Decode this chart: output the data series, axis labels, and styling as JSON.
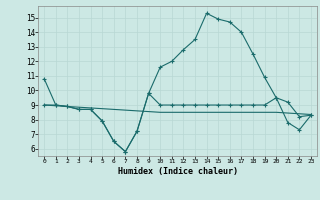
{
  "xlabel": "Humidex (Indice chaleur)",
  "bg_color": "#cce8e4",
  "grid_color": "#b8d8d4",
  "line_color": "#1a6b6b",
  "xlim": [
    -0.5,
    23.5
  ],
  "ylim": [
    5.5,
    15.8
  ],
  "yticks": [
    6,
    7,
    8,
    9,
    10,
    11,
    12,
    13,
    14,
    15
  ],
  "xticks": [
    0,
    1,
    2,
    3,
    4,
    5,
    6,
    7,
    8,
    9,
    10,
    11,
    12,
    13,
    14,
    15,
    16,
    17,
    18,
    19,
    20,
    21,
    22,
    23
  ],
  "line1_x": [
    0,
    1,
    2,
    3,
    4,
    5,
    6,
    7,
    8,
    9,
    10,
    11,
    12,
    13,
    14,
    15,
    16,
    17,
    18,
    19,
    20,
    21,
    22,
    23
  ],
  "line1_y": [
    10.8,
    9.0,
    8.9,
    8.7,
    8.7,
    7.9,
    6.5,
    5.8,
    7.2,
    9.8,
    11.6,
    12.0,
    12.8,
    13.5,
    15.3,
    14.9,
    14.7,
    14.0,
    12.5,
    10.9,
    9.5,
    9.2,
    8.2,
    8.3
  ],
  "line2_x": [
    0,
    1,
    2,
    3,
    4,
    5,
    6,
    7,
    8,
    9,
    10,
    11,
    12,
    13,
    14,
    15,
    16,
    17,
    18,
    19,
    20,
    21,
    22,
    23
  ],
  "line2_y": [
    9.0,
    9.0,
    8.9,
    8.7,
    8.7,
    7.9,
    6.5,
    5.8,
    7.2,
    9.8,
    9.0,
    9.0,
    9.0,
    9.0,
    9.0,
    9.0,
    9.0,
    9.0,
    9.0,
    9.0,
    9.5,
    7.8,
    7.3,
    8.3
  ],
  "line3_x": [
    0,
    1,
    2,
    3,
    4,
    5,
    6,
    7,
    8,
    9,
    10,
    11,
    12,
    13,
    14,
    15,
    16,
    17,
    18,
    19,
    20,
    21,
    22,
    23
  ],
  "line3_y": [
    9.0,
    8.95,
    8.9,
    8.85,
    8.8,
    8.75,
    8.7,
    8.65,
    8.6,
    8.55,
    8.5,
    8.5,
    8.5,
    8.5,
    8.5,
    8.5,
    8.5,
    8.5,
    8.5,
    8.5,
    8.5,
    8.45,
    8.4,
    8.35
  ]
}
